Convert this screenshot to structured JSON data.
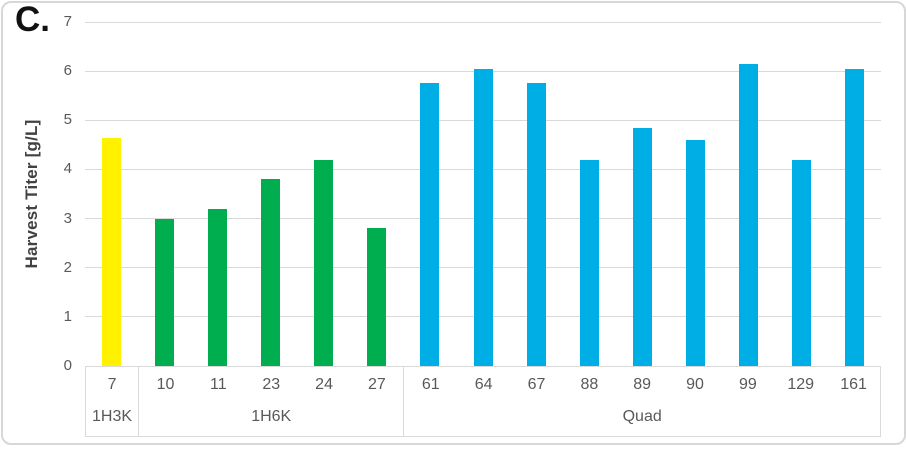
{
  "figure": {
    "panel_label": "C.",
    "background": "#ffffff",
    "frame_border_color": "#d7d7d7"
  },
  "chart_data": {
    "type": "bar",
    "title": "",
    "panel_label": "C.",
    "xlabel": "",
    "ylabel": "Harvest Titer [g/L]",
    "ylim": [
      0,
      7
    ],
    "yticks": [
      0,
      1,
      2,
      3,
      4,
      5,
      6,
      7
    ],
    "grid": "horizontal",
    "legend": "none",
    "gridline_color": "#d9d9d9",
    "tick_label_color": "#595959",
    "axis_title_color": "#424242",
    "groups": [
      {
        "name": "1H3K",
        "color": "#FFF100",
        "categories": [
          "7"
        ],
        "values": [
          4.65
        ]
      },
      {
        "name": "1H6K",
        "color": "#00AE50",
        "categories": [
          "10",
          "11",
          "23",
          "24",
          "27"
        ],
        "values": [
          3.0,
          3.2,
          3.8,
          4.2,
          2.8
        ]
      },
      {
        "name": "Quad",
        "color": "#00AEE6",
        "categories": [
          "61",
          "64",
          "67",
          "88",
          "89",
          "90",
          "99",
          "129",
          "161"
        ],
        "values": [
          5.75,
          6.05,
          5.75,
          4.2,
          4.85,
          4.6,
          6.15,
          4.2,
          6.05
        ]
      }
    ]
  }
}
